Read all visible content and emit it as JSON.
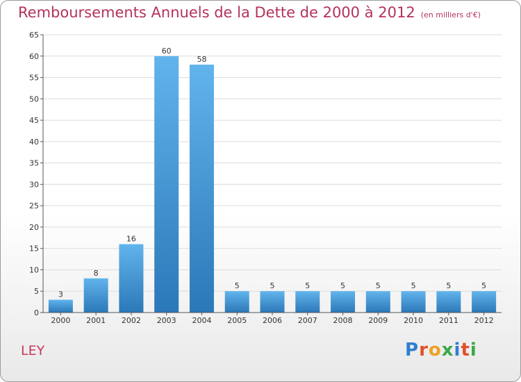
{
  "title": "Remboursements Annuels de la Dette de 2000 à 2012",
  "unit_note": "(en milliers d'€)",
  "commune": "LEY",
  "logo": {
    "text": "Proxiti",
    "letter_colors": [
      "#2f7fd0",
      "#e0502a",
      "#f0a020",
      "#3aa84a",
      "#2f7fd0",
      "#e0502a",
      "#3aa84a"
    ]
  },
  "colors": {
    "title": "#b4325a",
    "bar_top": "#62b4ec",
    "bar_bottom": "#2b78b8",
    "grid": "#dcdcdc",
    "axis": "#555555"
  },
  "chart_data": {
    "type": "bar",
    "title": "Remboursements Annuels de la Dette de 2000 à 2012",
    "xlabel": "",
    "ylabel": "",
    "categories": [
      "2000",
      "2001",
      "2002",
      "2003",
      "2004",
      "2005",
      "2006",
      "2007",
      "2008",
      "2009",
      "2010",
      "2011",
      "2012"
    ],
    "values": [
      3,
      8,
      16,
      60,
      58,
      5,
      5,
      5,
      5,
      5,
      5,
      5,
      5
    ],
    "ylim": [
      0,
      65
    ],
    "yticks": [
      0,
      5,
      10,
      15,
      20,
      25,
      30,
      35,
      40,
      45,
      50,
      55,
      60,
      65
    ],
    "grid": true,
    "data_labels": true
  }
}
